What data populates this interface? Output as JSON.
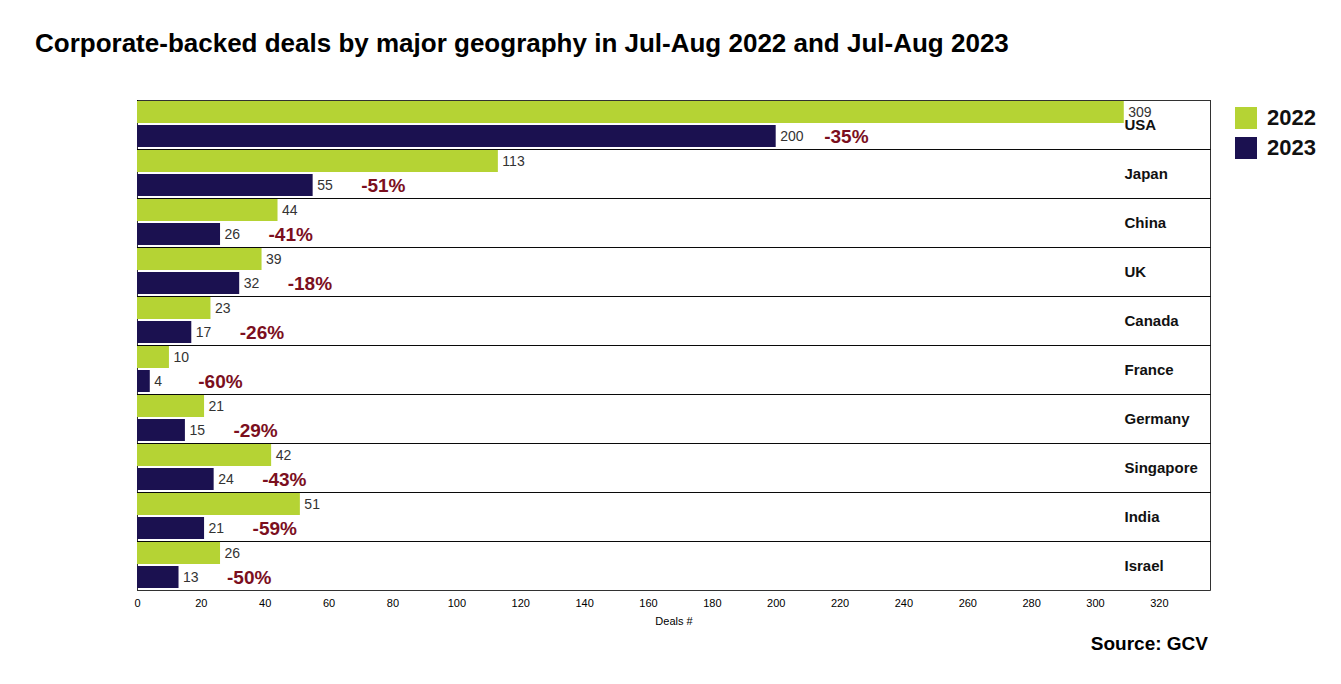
{
  "chart_data": {
    "type": "bar",
    "orientation": "horizontal",
    "title": "Corporate-backed deals by major geography in Jul-Aug 2022 and Jul-Aug 2023",
    "xlabel": "Deals #",
    "source": "Source: GCV",
    "categories": [
      "USA",
      "Japan",
      "China",
      "UK",
      "Canada",
      "France",
      "Germany",
      "Singapore",
      "India",
      "Israel"
    ],
    "series": [
      {
        "name": "2022",
        "color": "#b5d334",
        "values": [
          309,
          113,
          44,
          39,
          23,
          10,
          21,
          42,
          51,
          26
        ]
      },
      {
        "name": "2023",
        "color": "#1b1150",
        "values": [
          200,
          55,
          26,
          32,
          17,
          4,
          15,
          24,
          21,
          13
        ]
      }
    ],
    "annotations": [
      "-35%",
      "-51%",
      "-41%",
      "-18%",
      "-26%",
      "-60%",
      "-29%",
      "-43%",
      "-59%",
      "-50%"
    ],
    "xlim": [
      0,
      336
    ],
    "xticks": [
      0,
      20,
      40,
      60,
      80,
      100,
      120,
      140,
      160,
      180,
      200,
      220,
      240,
      260,
      280,
      300,
      320
    ],
    "data_labels": true,
    "grid": false,
    "legend": "top-right"
  }
}
